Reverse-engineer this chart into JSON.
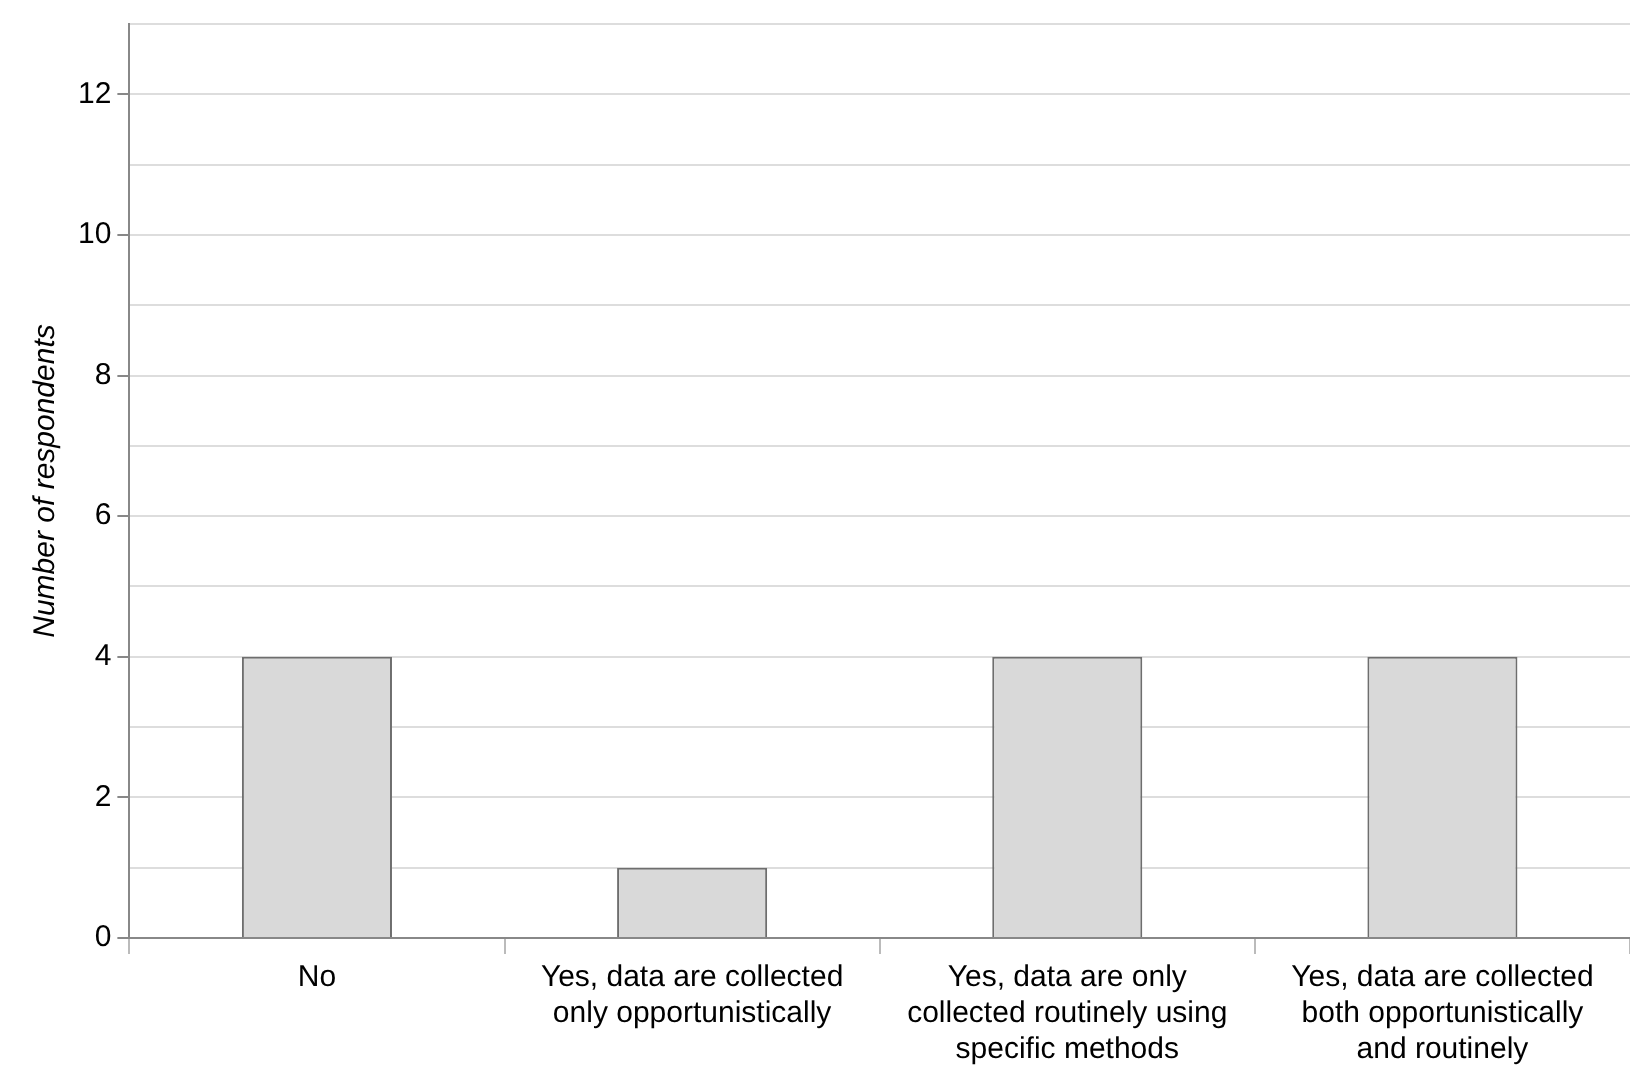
{
  "chart_data": {
    "type": "bar",
    "ylabel": "Number of respondents",
    "categories": [
      "No",
      "Yes, data are collected only opportunistically",
      "Yes, data are only collected routinely using specific methods",
      "Yes, data are collected both opportunistically and routinely"
    ],
    "values": [
      4,
      1,
      4,
      4
    ],
    "color": "#d9d9d9",
    "ylim": [
      0,
      13
    ],
    "yticks": [
      0,
      {
        "value": 1,
        "label": null
      },
      2,
      {
        "value": 3,
        "label": null
      },
      4,
      {
        "value": 5,
        "label": null
      },
      6,
      {
        "value": 7,
        "label": null
      },
      8,
      {
        "value": 9,
        "label": null
      },
      10,
      {
        "value": 11,
        "label": null
      },
      12,
      {
        "value": 13,
        "label": null
      }
    ],
    "grid": "y",
    "legend": false
  }
}
